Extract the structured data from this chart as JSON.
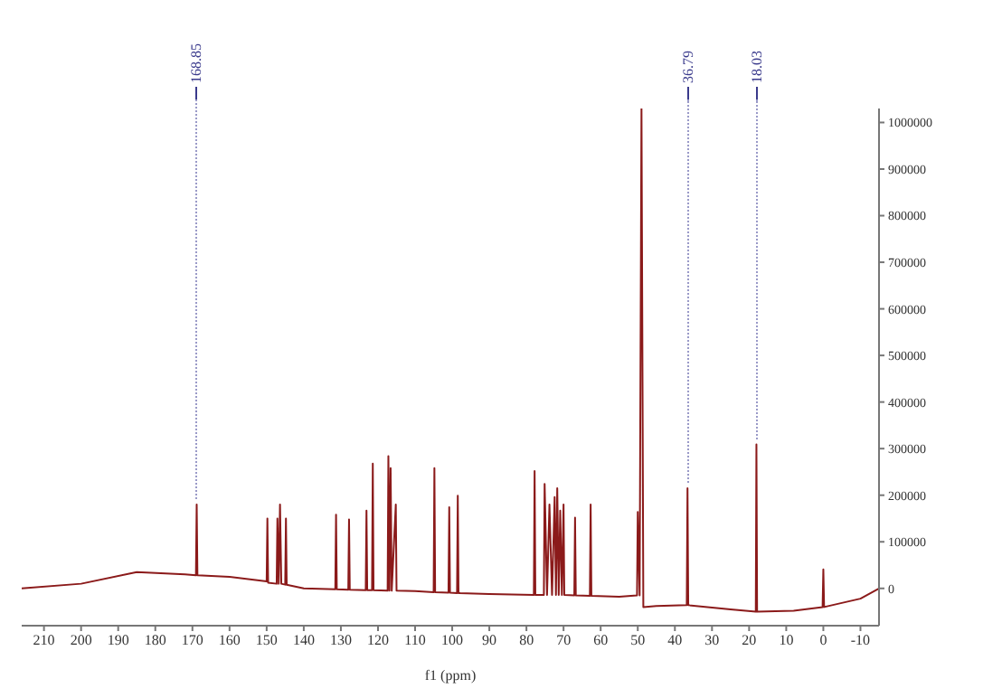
{
  "chart_data": {
    "type": "line",
    "xlabel": "f1 (ppm)",
    "annotations": [
      {
        "text": "168.85",
        "x": 168.85,
        "y": 180000
      },
      {
        "text": "36.79",
        "x": 36.6,
        "y": 215000
      },
      {
        "text": "18.03",
        "x": 18.03,
        "y": 309000
      }
    ],
    "xlim": [
      216,
      -15
    ],
    "xticks": [
      210,
      200,
      190,
      180,
      170,
      160,
      150,
      140,
      130,
      120,
      110,
      100,
      90,
      80,
      70,
      60,
      50,
      40,
      30,
      20,
      10,
      0,
      -10
    ],
    "ylim": [
      -80000,
      1030000
    ],
    "yticks": [
      0,
      100000,
      200000,
      300000,
      400000,
      500000,
      600000,
      700000,
      800000,
      900000,
      1000000
    ],
    "grid": false,
    "marker": "none",
    "line_style": "solid",
    "series": [
      {
        "color": "#8b1a1a",
        "x": [
          216,
          200,
          185,
          172,
          169.05,
          168.85,
          168.65,
          160,
          150,
          149.8,
          149.6,
          147.3,
          147.1,
          146.75,
          146.4,
          146.05,
          145,
          144.8,
          144.6,
          140,
          131.5,
          131.3,
          131.1,
          128,
          127.8,
          127.6,
          123.3,
          123.1,
          122.9,
          121.6,
          121.4,
          121.2,
          117.4,
          117.2,
          116.9,
          116.6,
          116.3,
          115.2,
          115.0,
          110,
          105,
          104.8,
          104.6,
          101,
          100.8,
          100.6,
          98.7,
          98.5,
          98.3,
          90,
          78,
          77.8,
          77.6,
          75.3,
          75.1,
          74.45,
          73.8,
          73.1,
          72.4,
          72.05,
          71.7,
          71.3,
          70.9,
          70.45,
          70.0,
          69.8,
          67.1,
          66.9,
          66.7,
          62.9,
          62.7,
          62.5,
          55,
          50.2,
          50.0,
          49.5,
          49.0,
          48.5,
          45,
          36.8,
          36.6,
          36.4,
          25,
          18.2,
          18.03,
          17.85,
          8,
          0.2,
          0,
          -0.2,
          -10,
          -15
        ],
        "values": [
          0,
          10000,
          35000,
          30000,
          28000,
          180000,
          28000,
          25000,
          15000,
          150000,
          12000,
          10000,
          150000,
          10000,
          180000,
          10000,
          8000,
          150000,
          8000,
          0,
          -2000,
          158000,
          -2000,
          -3000,
          148000,
          -3000,
          -4000,
          167000,
          -4000,
          -4000,
          268000,
          -4000,
          -5000,
          284000,
          -5000,
          258000,
          -5000,
          180000,
          -5000,
          -6000,
          -8000,
          258000,
          -8000,
          -9000,
          174000,
          -9000,
          -10000,
          199000,
          -10000,
          -12000,
          -14000,
          252000,
          -14000,
          -14000,
          224000,
          -14000,
          180000,
          -14000,
          196000,
          -14000,
          215000,
          -14000,
          167000,
          -14000,
          180000,
          -14000,
          -15000,
          152000,
          -15000,
          -16000,
          180000,
          -16000,
          -18000,
          -15000,
          164000,
          -15000,
          1030000,
          -40000,
          -38000,
          -36000,
          215000,
          -36000,
          -45000,
          -50000,
          309000,
          -50000,
          -48000,
          -40000,
          41000,
          -40000,
          -22000,
          0
        ]
      }
    ]
  }
}
